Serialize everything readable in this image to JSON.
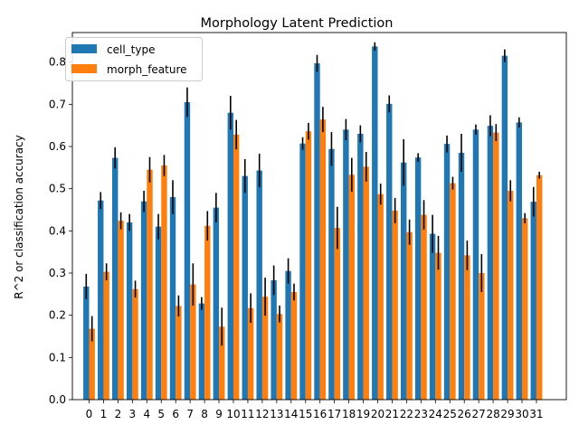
{
  "chart_data": {
    "type": "bar",
    "title": "Morphology Latent Prediction",
    "xlabel": "",
    "ylabel": "R^2 or classification accuracy",
    "ylim": [
      0.0,
      0.87
    ],
    "yticks": [
      "0.0",
      "0.1",
      "0.2",
      "0.3",
      "0.4",
      "0.5",
      "0.6",
      "0.7",
      "0.8"
    ],
    "categories": [
      "0",
      "1",
      "2",
      "3",
      "4",
      "5",
      "6",
      "7",
      "8",
      "9",
      "10",
      "11",
      "12",
      "13",
      "14",
      "15",
      "16",
      "17",
      "18",
      "19",
      "20",
      "21",
      "22",
      "23",
      "24",
      "25",
      "26",
      "27",
      "28",
      "29",
      "30",
      "31"
    ],
    "legend_position": "top-left",
    "grid": false,
    "series": [
      {
        "name": "cell_type",
        "color": "#1f77b4",
        "values": [
          0.268,
          0.472,
          0.573,
          0.42,
          0.47,
          0.41,
          0.48,
          0.705,
          0.228,
          0.455,
          0.68,
          0.53,
          0.543,
          0.283,
          0.305,
          0.607,
          0.797,
          0.594,
          0.64,
          0.63,
          0.837,
          0.701,
          0.562,
          0.574,
          0.393,
          0.606,
          0.585,
          0.64,
          0.649,
          0.815,
          0.657,
          0.469
        ],
        "errors": [
          0.03,
          0.02,
          0.025,
          0.02,
          0.025,
          0.03,
          0.04,
          0.035,
          0.015,
          0.035,
          0.04,
          0.04,
          0.04,
          0.035,
          0.03,
          0.015,
          0.02,
          0.04,
          0.025,
          0.02,
          0.01,
          0.02,
          0.055,
          0.01,
          0.045,
          0.02,
          0.045,
          0.012,
          0.025,
          0.015,
          0.012,
          0.035
        ]
      },
      {
        "name": "morph_feature",
        "color": "#ff7f0e",
        "values": [
          0.168,
          0.303,
          0.424,
          0.262,
          0.545,
          0.555,
          0.222,
          0.273,
          0.412,
          0.173,
          0.628,
          0.217,
          0.244,
          0.203,
          0.255,
          0.636,
          0.664,
          0.407,
          0.533,
          0.552,
          0.487,
          0.448,
          0.397,
          0.438,
          0.348,
          0.513,
          0.342,
          0.3,
          0.633,
          0.495,
          0.43,
          0.532
        ],
        "errors": [
          0.03,
          0.02,
          0.02,
          0.02,
          0.03,
          0.025,
          0.025,
          0.05,
          0.035,
          0.045,
          0.035,
          0.035,
          0.045,
          0.02,
          0.02,
          0.02,
          0.03,
          0.05,
          0.04,
          0.035,
          0.025,
          0.03,
          0.03,
          0.035,
          0.04,
          0.015,
          0.035,
          0.045,
          0.02,
          0.025,
          0.012,
          0.008
        ]
      }
    ]
  }
}
